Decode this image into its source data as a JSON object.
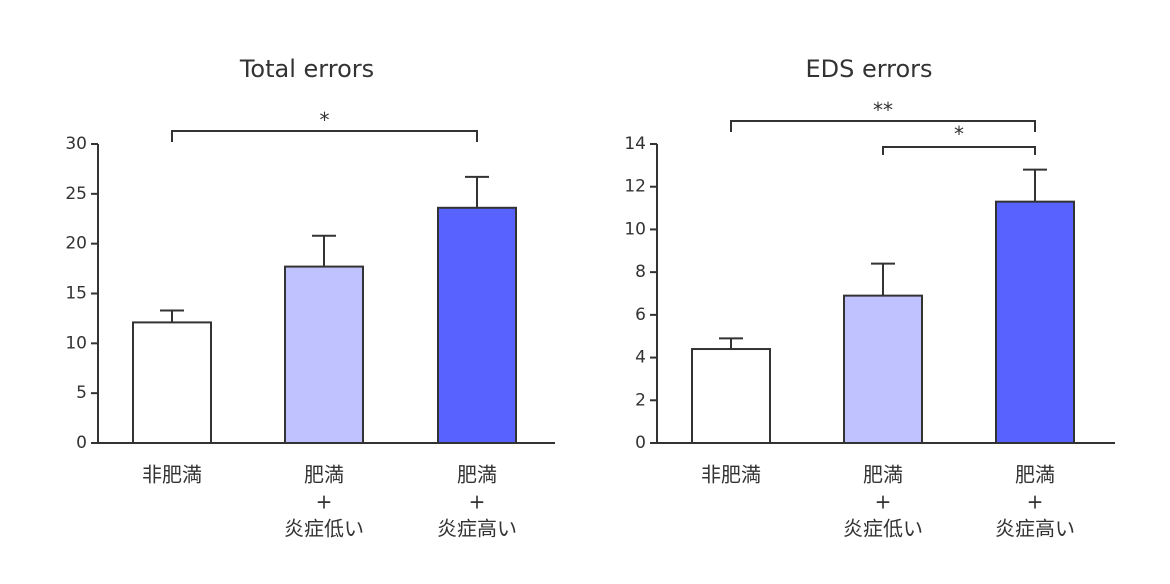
{
  "chart_data": [
    {
      "type": "bar",
      "title": "Total errors",
      "xlabel": "",
      "ylabel": "",
      "ylim": [
        0,
        30
      ],
      "yticks": [
        0,
        5,
        10,
        15,
        20,
        25,
        30
      ],
      "categories": [
        [
          "非肥満"
        ],
        [
          "肥満",
          "+",
          "炎症低い"
        ],
        [
          "肥満",
          "+",
          "炎症高い"
        ]
      ],
      "values": [
        12.1,
        17.7,
        23.6
      ],
      "errors": [
        1.2,
        3.1,
        3.1
      ],
      "colors": [
        "#ffffff",
        "#c0c2ff",
        "#5862ff"
      ],
      "significance": [
        {
          "from": 0,
          "to": 2,
          "label": "*"
        }
      ],
      "grid": false
    },
    {
      "type": "bar",
      "title": "EDS errors",
      "xlabel": "",
      "ylabel": "",
      "ylim": [
        0,
        14
      ],
      "yticks": [
        0,
        2,
        4,
        6,
        8,
        10,
        12,
        14
      ],
      "categories": [
        [
          "非肥満"
        ],
        [
          "肥満",
          "+",
          "炎症低い"
        ],
        [
          "肥満",
          "+",
          "炎症高い"
        ]
      ],
      "values": [
        4.4,
        6.9,
        11.3
      ],
      "errors": [
        0.5,
        1.5,
        1.5
      ],
      "colors": [
        "#ffffff",
        "#c0c2ff",
        "#5862ff"
      ],
      "significance": [
        {
          "from": 0,
          "to": 2,
          "label": "**"
        },
        {
          "from": 1,
          "to": 2,
          "label": "*"
        }
      ],
      "grid": false
    }
  ]
}
